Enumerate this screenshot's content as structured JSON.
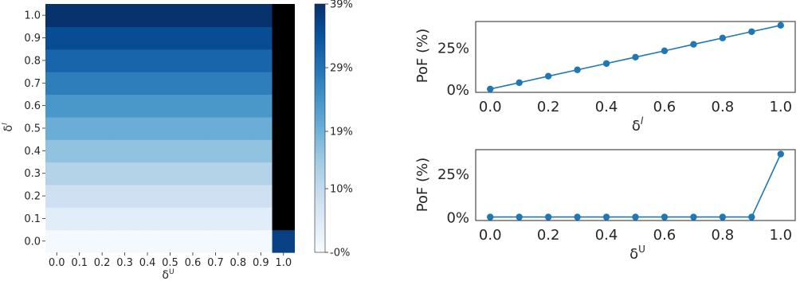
{
  "chart_data": [
    {
      "type": "heatmap",
      "xlabel": "δU",
      "ylabel": "δl",
      "x_ticks": [
        "0.0",
        "0.1",
        "0.2",
        "0.3",
        "0.4",
        "0.5",
        "0.6",
        "0.7",
        "0.8",
        "0.9",
        "1.0"
      ],
      "y_ticks": [
        "0.0",
        "0.1",
        "0.2",
        "0.3",
        "0.4",
        "0.5",
        "0.6",
        "0.7",
        "0.8",
        "0.9",
        "1.0"
      ],
      "row_values_percent": [
        0.5,
        4.3,
        8.2,
        12.0,
        15.8,
        19.6,
        23.4,
        27.3,
        31.1,
        34.9,
        38.7
      ],
      "last_column_values_percent": [
        36.5,
        null,
        null,
        null,
        null,
        null,
        null,
        null,
        null,
        null,
        null
      ],
      "missing_color": "#000000",
      "colormap": "Blues",
      "colorbar": {
        "min": 0,
        "max": 39,
        "tick_labels": [
          "39%",
          "29%",
          "19%",
          "10%",
          "-0%"
        ],
        "tick_values": [
          39,
          29,
          19,
          10,
          0
        ]
      }
    },
    {
      "type": "line",
      "ylabel": "PoF (%)",
      "xlabel": "δl",
      "x": [
        0.0,
        0.1,
        0.2,
        0.3,
        0.4,
        0.5,
        0.6,
        0.7,
        0.8,
        0.9,
        1.0
      ],
      "y": [
        0.5,
        4.3,
        8.2,
        12.0,
        15.8,
        19.6,
        23.4,
        27.3,
        31.1,
        34.9,
        38.7
      ],
      "xlim": [
        -0.05,
        1.05
      ],
      "ylim": [
        -1.5,
        41
      ],
      "x_tick_labels": [
        "0.0",
        "0.2",
        "0.4",
        "0.6",
        "0.8",
        "1.0"
      ],
      "y_tick_labels": [
        "0%",
        "25%"
      ],
      "color": "#1f77b4"
    },
    {
      "type": "line",
      "ylabel": "PoF (%)",
      "xlabel": "δU",
      "x": [
        0.0,
        0.1,
        0.2,
        0.3,
        0.4,
        0.5,
        0.6,
        0.7,
        0.8,
        0.9,
        1.0
      ],
      "y": [
        0.5,
        0.5,
        0.5,
        0.5,
        0.5,
        0.5,
        0.5,
        0.5,
        0.5,
        0.5,
        36.5
      ],
      "xlim": [
        -0.05,
        1.05
      ],
      "ylim": [
        -1.5,
        39
      ],
      "x_tick_labels": [
        "0.0",
        "0.2",
        "0.4",
        "0.6",
        "0.8",
        "1.0"
      ],
      "y_tick_labels": [
        "0%",
        "25%"
      ],
      "color": "#1f77b4"
    }
  ]
}
